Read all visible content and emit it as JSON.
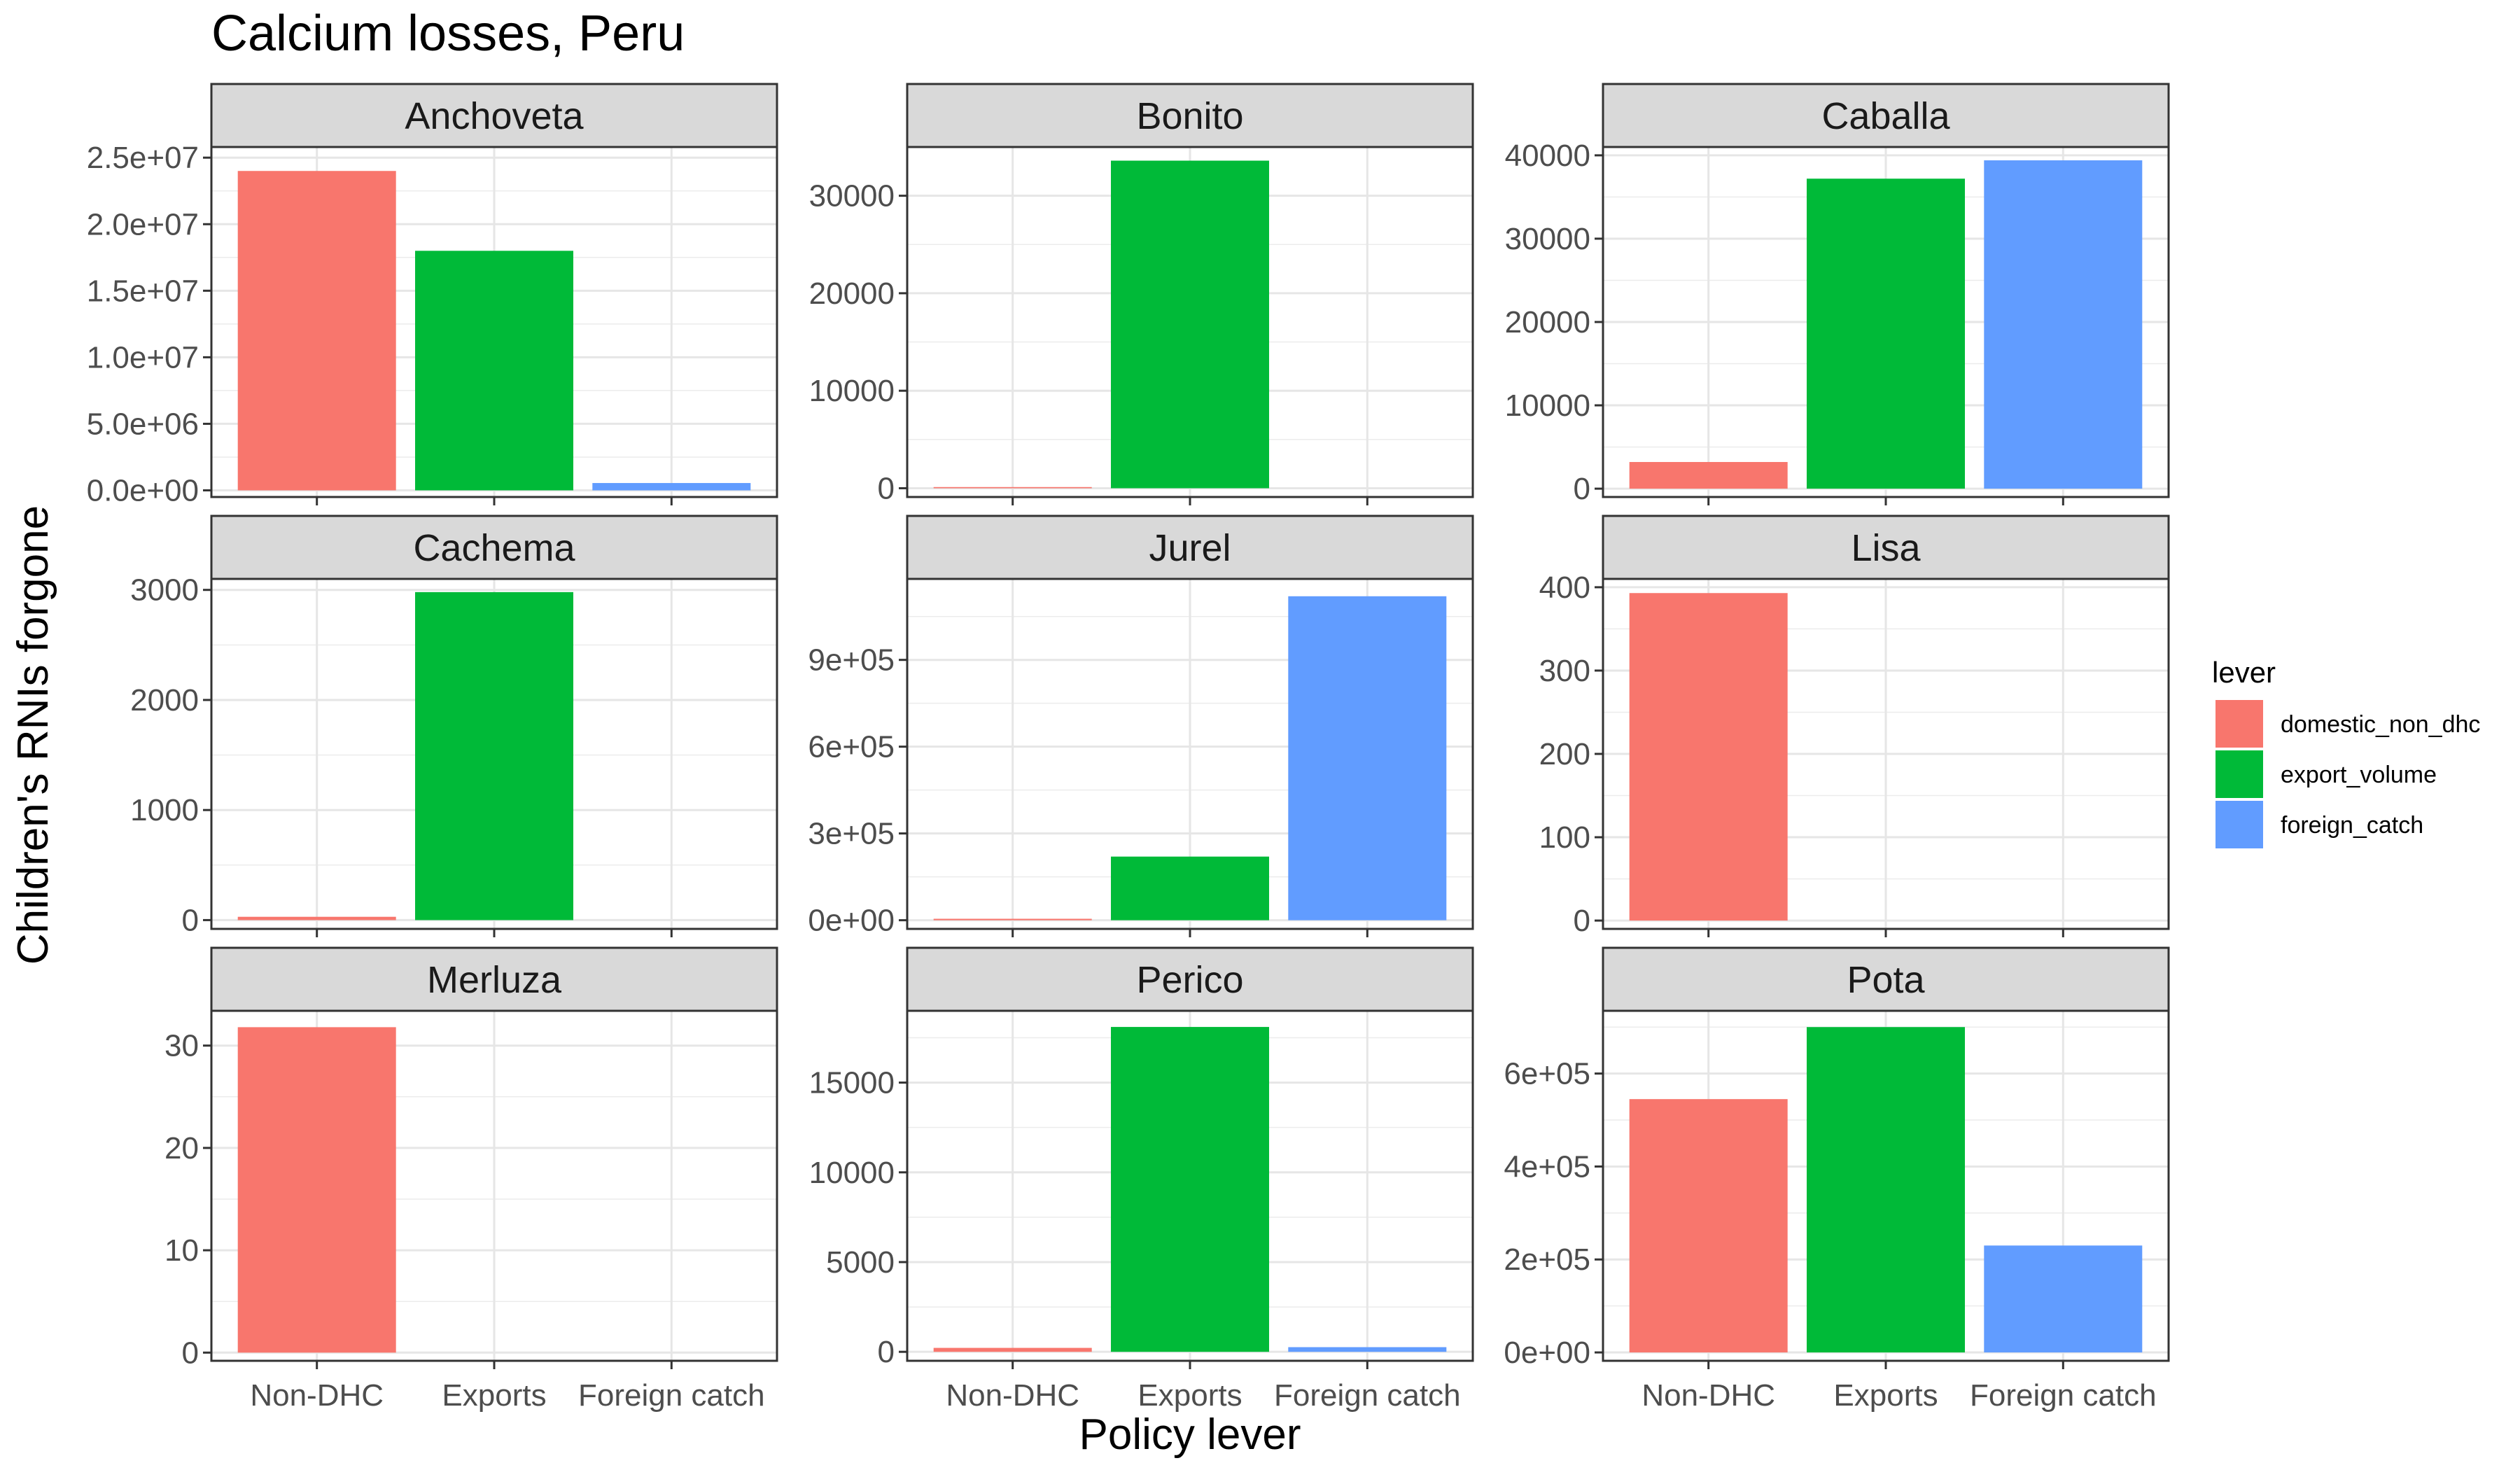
{
  "chart_data": {
    "type": "bar",
    "title": "Calcium losses, Peru",
    "xlabel": "Policy lever",
    "ylabel": "Children's RNIs forgone",
    "categories": [
      "Non-DHC",
      "Exports",
      "Foreign catch"
    ],
    "legend": {
      "title": "lever",
      "position": "right",
      "entries": [
        {
          "key": "domestic_non_dhc",
          "color": "#F8766D"
        },
        {
          "key": "export_volume",
          "color": "#00BA38"
        },
        {
          "key": "foreign_catch",
          "color": "#619CFF"
        }
      ]
    },
    "grid": true,
    "facets": [
      {
        "name": "Anchoveta",
        "values": [
          24000000,
          18000000,
          550000
        ],
        "ylim": [
          -500000,
          25800000
        ],
        "ticks": [
          0,
          5000000,
          10000000,
          15000000,
          20000000,
          25000000
        ],
        "tick_labels": [
          "0.0e+00",
          "5.0e+06",
          "1.0e+07",
          "1.5e+07",
          "2.0e+07",
          "2.5e+07"
        ]
      },
      {
        "name": "Bonito",
        "values": [
          120,
          33600,
          0
        ],
        "ylim": [
          -900,
          35000
        ],
        "ticks": [
          0,
          10000,
          20000,
          30000
        ],
        "tick_labels": [
          "0",
          "10000",
          "20000",
          "30000"
        ]
      },
      {
        "name": "Caballa",
        "values": [
          3200,
          37200,
          39400
        ],
        "ylim": [
          -1000,
          41000
        ],
        "ticks": [
          0,
          10000,
          20000,
          30000,
          40000
        ],
        "tick_labels": [
          "0",
          "10000",
          "20000",
          "30000",
          "40000"
        ]
      },
      {
        "name": "Cachema",
        "values": [
          30,
          2980,
          0
        ],
        "ylim": [
          -80,
          3100
        ],
        "ticks": [
          0,
          1000,
          2000,
          3000
        ],
        "tick_labels": [
          "0",
          "1000",
          "2000",
          "3000"
        ]
      },
      {
        "name": "Jurel",
        "values": [
          5000,
          220000,
          1120000
        ],
        "ylim": [
          -30000,
          1180000
        ],
        "ticks": [
          0,
          300000,
          600000,
          900000
        ],
        "tick_labels": [
          "0e+00",
          "3e+05",
          "6e+05",
          "9e+05"
        ]
      },
      {
        "name": "Lisa",
        "values": [
          393,
          0,
          0
        ],
        "ylim": [
          -10,
          410
        ],
        "ticks": [
          0,
          100,
          200,
          300,
          400
        ],
        "tick_labels": [
          "0",
          "100",
          "200",
          "300",
          "400"
        ]
      },
      {
        "name": "Merluza",
        "values": [
          31.8,
          0,
          0
        ],
        "ylim": [
          -0.8,
          33.4
        ],
        "ticks": [
          0,
          10,
          20,
          30
        ],
        "tick_labels": [
          "0",
          "10",
          "20",
          "30"
        ]
      },
      {
        "name": "Perico",
        "values": [
          220,
          18100,
          260
        ],
        "ylim": [
          -500,
          19000
        ],
        "ticks": [
          0,
          5000,
          10000,
          15000
        ],
        "tick_labels": [
          "0",
          "5000",
          "10000",
          "15000"
        ]
      },
      {
        "name": "Pota",
        "values": [
          545000,
          700000,
          230000
        ],
        "ylim": [
          -18000,
          735000
        ],
        "ticks": [
          0,
          200000,
          400000,
          600000
        ],
        "tick_labels": [
          "0e+00",
          "2e+05",
          "4e+05",
          "6e+05"
        ]
      }
    ]
  }
}
